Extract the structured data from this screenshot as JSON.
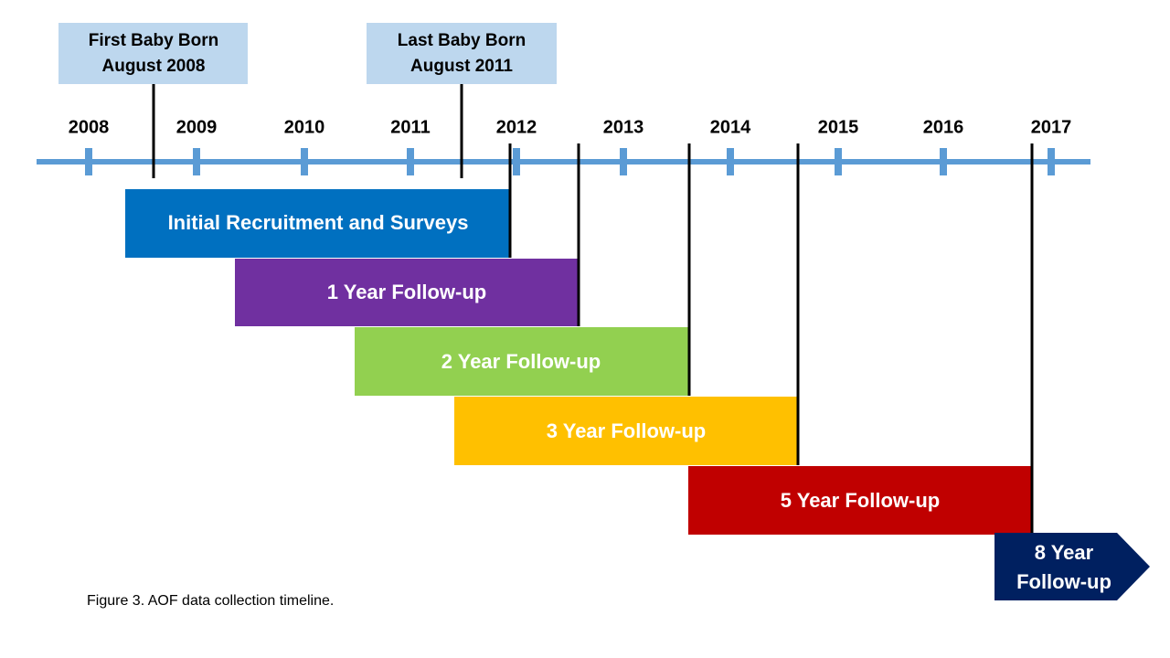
{
  "callouts": [
    {
      "lines": [
        "First Baby Born",
        "August 2008"
      ]
    },
    {
      "lines": [
        "Last Baby Born",
        "August 2011"
      ]
    }
  ],
  "years": [
    "2008",
    "2009",
    "2010",
    "2011",
    "2012",
    "2013",
    "2014",
    "2015",
    "2016",
    "2017"
  ],
  "phases": [
    {
      "label": "Initial Recruitment and Surveys"
    },
    {
      "label": "1 Year Follow-up"
    },
    {
      "label": "2 Year Follow-up"
    },
    {
      "label": "3 Year Follow-up"
    },
    {
      "label": "5 Year Follow-up"
    }
  ],
  "final_phase": {
    "lines": [
      "8 Year",
      "Follow-up"
    ]
  },
  "caption": "Figure 3. AOF data collection timeline."
}
